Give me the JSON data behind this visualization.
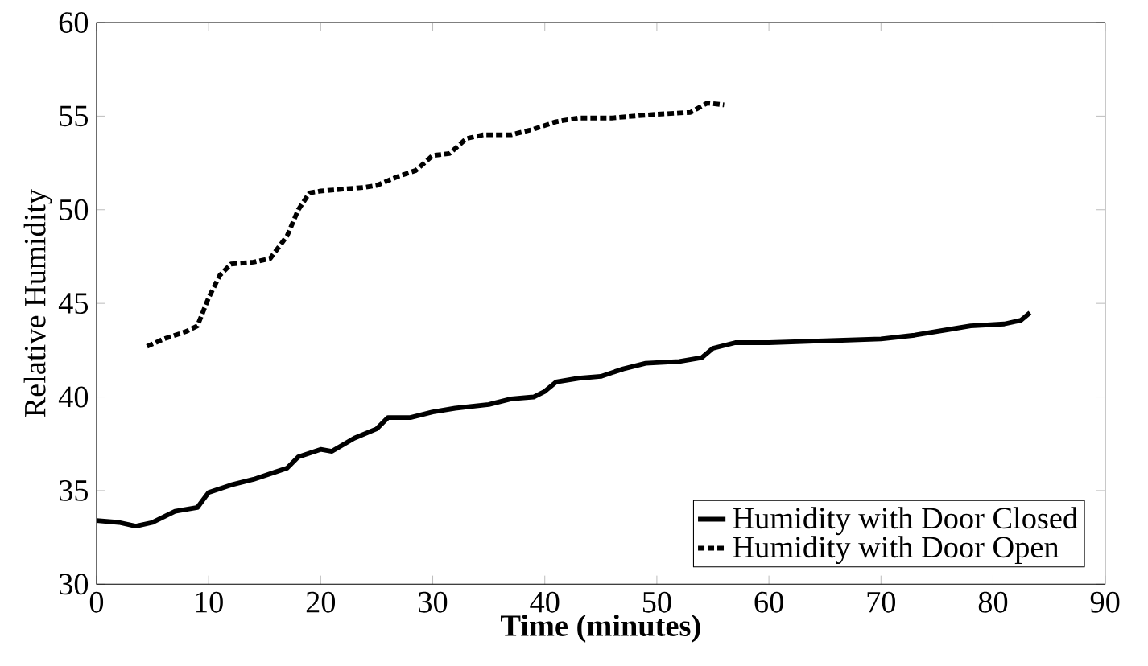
{
  "chart_data": {
    "type": "line",
    "xlabel": "Time (minutes)",
    "ylabel": "Relative Humidity",
    "xlim": [
      0,
      90
    ],
    "ylim": [
      30,
      60
    ],
    "xticks": [
      0,
      10,
      20,
      30,
      40,
      50,
      60,
      70,
      80,
      90
    ],
    "yticks": [
      30,
      35,
      40,
      45,
      50,
      55,
      60
    ],
    "grid": false,
    "legend": "bottom right",
    "marker": "none",
    "series": [
      {
        "name": "Humidity with Door Closed",
        "color": "#000000",
        "line_style": "solid",
        "x": [
          0,
          2,
          3.5,
          5,
          6,
          7,
          9,
          10,
          12,
          14,
          16,
          17,
          18,
          20,
          21,
          23,
          25,
          26,
          28,
          30,
          32,
          35,
          37,
          39,
          40,
          41,
          43,
          45,
          47,
          49,
          52,
          54,
          55,
          57,
          60,
          65,
          70,
          73,
          76,
          78,
          81,
          82.5,
          83.3
        ],
        "values": [
          33.4,
          33.3,
          33.1,
          33.3,
          33.6,
          33.9,
          34.1,
          34.9,
          35.3,
          35.6,
          36.0,
          36.2,
          36.8,
          37.2,
          37.1,
          37.8,
          38.3,
          38.9,
          38.9,
          39.2,
          39.4,
          39.6,
          39.9,
          40.0,
          40.3,
          40.8,
          41.0,
          41.1,
          41.5,
          41.8,
          41.9,
          42.1,
          42.6,
          42.9,
          42.9,
          43.0,
          43.1,
          43.3,
          43.6,
          43.8,
          43.9,
          44.1,
          44.5
        ]
      },
      {
        "name": "Humidity with Door Open",
        "color": "#000000",
        "line_style": "dashed",
        "x": [
          4.5,
          6,
          8,
          9,
          10,
          11,
          12,
          14,
          15.5,
          17,
          18,
          19,
          20,
          22,
          24,
          25,
          27,
          28.5,
          30,
          31.5,
          33,
          34.5,
          37,
          39,
          41,
          43,
          46,
          50,
          53,
          54.5,
          56
        ],
        "values": [
          42.7,
          43.1,
          43.5,
          43.8,
          45.3,
          46.5,
          47.1,
          47.2,
          47.4,
          48.6,
          50.0,
          50.9,
          51.0,
          51.1,
          51.2,
          51.3,
          51.8,
          52.1,
          52.9,
          53.0,
          53.8,
          54.0,
          54.0,
          54.3,
          54.7,
          54.9,
          54.9,
          55.1,
          55.2,
          55.7,
          55.6
        ]
      }
    ]
  }
}
